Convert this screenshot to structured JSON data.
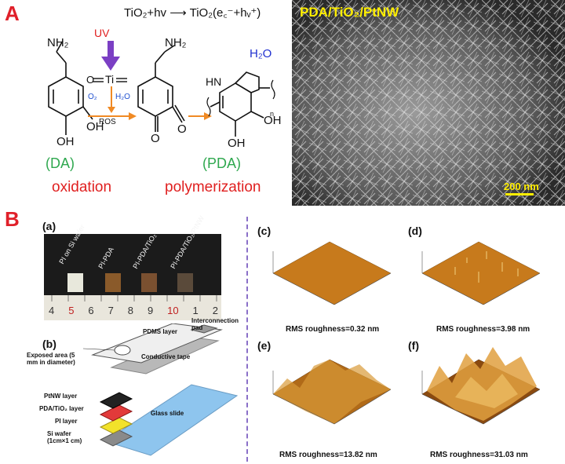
{
  "panel_a": {
    "letter": "A",
    "equation": "TiO₂+hv ⟶ TiO₂(e꜀⁻+hᵥ⁺)",
    "uv": "UV",
    "nh2_left": "NH₂",
    "nh2_mid": "NH₂",
    "o_label": "O",
    "ti_label": "Ti",
    "o2": "O₂",
    "h2o_small": "H₂O",
    "ros": "ROS",
    "h2o_big": "H₂O",
    "hn": "HN",
    "n_sub": "n",
    "oh_left": "OH",
    "oh_left2": "OH",
    "o_mid1": "O",
    "o_mid2": "O",
    "oh_right1": "OH",
    "oh_right2": "OH",
    "da_label": "(DA)",
    "pda_label": "(PDA)",
    "oxidation": "oxidation",
    "polymerization": "polymerization",
    "sem_title": "PDA/TiO₂/PtNW",
    "scale_bar": "200 nm"
  },
  "panel_b": {
    "letter": "B",
    "sub_a": "(a)",
    "sub_b": "(b)",
    "sub_c": "(c)",
    "sub_d": "(d)",
    "sub_e": "(e)",
    "sub_f": "(f)",
    "chips": [
      "PI on Si wafer",
      "PI-PDA",
      "PI-PDA/TiO₂",
      "PI-PDA/TiO₂/PtNW"
    ],
    "ruler_numbers": [
      "4",
      "5",
      "6",
      "7",
      "8",
      "9",
      "10",
      "1",
      "2"
    ],
    "schematic": {
      "pdms": "PDMS layer",
      "interconnect": "Interconnection pad",
      "exposed": "Exposed area (5 mm in diameter)",
      "conductive": "Conductive tape",
      "ptnw": "PtNW layer",
      "pda_tio2": "PDA/TiO₂ layer",
      "pi": "PI layer",
      "si": "Si wafer (1cm×1 cm)",
      "glass": "Glass slide"
    },
    "afm": [
      {
        "id": "c",
        "rms": "RMS roughness=0.32 nm"
      },
      {
        "id": "d",
        "rms": "RMS roughness=3.98 nm"
      },
      {
        "id": "e",
        "rms": "RMS roughness=13.82 nm"
      },
      {
        "id": "f",
        "rms": "RMS roughness=31.03 nm"
      }
    ],
    "colors": {
      "afm_surface": "#c77a1c",
      "afm_dark": "#6a3a08",
      "ptnw": "#222222",
      "pda": "#e23a3a",
      "pi": "#f2e22a",
      "si": "#888888",
      "glass": "#8ec5ee",
      "divider": "#8a6fc8"
    }
  }
}
